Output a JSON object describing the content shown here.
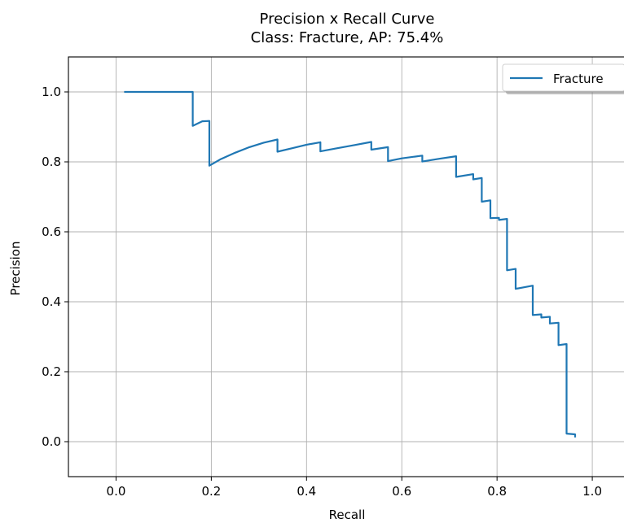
{
  "chart_data": {
    "type": "line",
    "title": "Precision x Recall Curve",
    "subtitle": "Class: Fracture, AP: 75.4%",
    "xlabel": "Recall",
    "ylabel": "Precision",
    "xlim": [
      -0.1,
      1.07
    ],
    "ylim": [
      -0.1,
      1.1
    ],
    "x_ticks": [
      0.0,
      0.2,
      0.4,
      0.6,
      0.8,
      1.0
    ],
    "x_tick_labels": [
      "0.0",
      "0.2",
      "0.4",
      "0.6",
      "0.8",
      "1.0"
    ],
    "y_ticks": [
      0.0,
      0.2,
      0.4,
      0.6,
      0.8,
      1.0
    ],
    "y_tick_labels": [
      "0.0",
      "0.2",
      "0.4",
      "0.6",
      "0.8",
      "1.0"
    ],
    "grid": true,
    "legend_position": "top-right",
    "series": [
      {
        "name": "Fracture",
        "color": "#1f77b4",
        "points": [
          [
            0.017,
            1.0
          ],
          [
            0.161,
            1.0
          ],
          [
            0.161,
            0.903
          ],
          [
            0.181,
            0.916
          ],
          [
            0.196,
            0.917
          ],
          [
            0.196,
            0.789
          ],
          [
            0.22,
            0.808
          ],
          [
            0.25,
            0.826
          ],
          [
            0.28,
            0.842
          ],
          [
            0.31,
            0.855
          ],
          [
            0.339,
            0.864
          ],
          [
            0.339,
            0.829
          ],
          [
            0.37,
            0.839
          ],
          [
            0.4,
            0.849
          ],
          [
            0.429,
            0.856
          ],
          [
            0.429,
            0.83
          ],
          [
            0.46,
            0.838
          ],
          [
            0.5,
            0.848
          ],
          [
            0.536,
            0.857
          ],
          [
            0.536,
            0.835
          ],
          [
            0.571,
            0.842
          ],
          [
            0.571,
            0.802
          ],
          [
            0.6,
            0.81
          ],
          [
            0.643,
            0.818
          ],
          [
            0.643,
            0.801
          ],
          [
            0.68,
            0.809
          ],
          [
            0.714,
            0.816
          ],
          [
            0.714,
            0.757
          ],
          [
            0.75,
            0.765
          ],
          [
            0.75,
            0.75
          ],
          [
            0.768,
            0.754
          ],
          [
            0.768,
            0.686
          ],
          [
            0.786,
            0.69
          ],
          [
            0.786,
            0.639
          ],
          [
            0.804,
            0.64
          ],
          [
            0.804,
            0.634
          ],
          [
            0.821,
            0.637
          ],
          [
            0.821,
            0.49
          ],
          [
            0.839,
            0.494
          ],
          [
            0.839,
            0.437
          ],
          [
            0.875,
            0.446
          ],
          [
            0.875,
            0.362
          ],
          [
            0.893,
            0.364
          ],
          [
            0.893,
            0.355
          ],
          [
            0.911,
            0.357
          ],
          [
            0.911,
            0.338
          ],
          [
            0.929,
            0.34
          ],
          [
            0.929,
            0.276
          ],
          [
            0.946,
            0.279
          ],
          [
            0.946,
            0.023
          ],
          [
            0.964,
            0.021
          ],
          [
            0.964,
            0.012
          ]
        ]
      }
    ]
  }
}
